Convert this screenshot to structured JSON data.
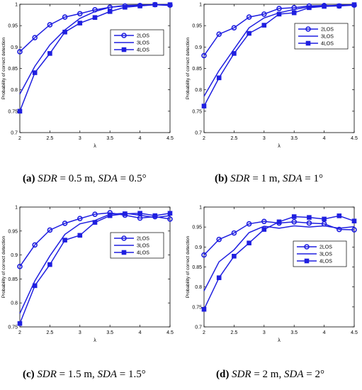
{
  "panels": [
    {
      "caption": {
        "label": "(a)",
        "var1": "SDR",
        "val1": " = 0.5 m, ",
        "var2": "SDA",
        "val2": " = 0.5°"
      },
      "chart_data": {
        "type": "line",
        "xlabel": "λ",
        "ylabel": "Probability of correct detection",
        "xlim": [
          2,
          4.5
        ],
        "ylim": [
          0.7,
          1
        ],
        "xticks": [
          "2",
          "2.5",
          "3",
          "3.5",
          "4",
          "4.5"
        ],
        "yticks": [
          "0.7",
          "0.75",
          "0.8",
          "0.85",
          "0.9",
          "0.95",
          "1"
        ],
        "legend": "top-right",
        "x": [
          2,
          2.25,
          2.5,
          2.75,
          3,
          3.25,
          3.5,
          3.75,
          4,
          4.25,
          4.5
        ],
        "series": [
          {
            "name": "2LOS",
            "marker": "circle",
            "values": [
              0.889,
              0.922,
              0.952,
              0.97,
              0.978,
              0.987,
              0.993,
              0.996,
              0.997,
              0.999,
              0.998
            ]
          },
          {
            "name": "3LOS",
            "marker": "none",
            "values": [
              0.79,
              0.855,
              0.905,
              0.94,
              0.967,
              0.983,
              0.993,
              0.997,
              0.998,
              0.999,
              0.997
            ]
          },
          {
            "name": "4LOS",
            "marker": "square",
            "values": [
              0.75,
              0.84,
              0.885,
              0.935,
              0.956,
              0.969,
              0.983,
              0.993,
              0.996,
              0.999,
              0.999
            ]
          }
        ]
      }
    },
    {
      "caption": {
        "label": "(b)",
        "var1": "SDR",
        "val1": " = 1 m, ",
        "var2": "SDA",
        "val2": " = 1°"
      },
      "chart_data": {
        "type": "line",
        "xlabel": "λ",
        "ylabel": "Probability of correct detection",
        "xlim": [
          2,
          4.5
        ],
        "ylim": [
          0.7,
          1
        ],
        "xticks": [
          "2",
          "2.5",
          "3",
          "3.5",
          "4",
          "4.5"
        ],
        "yticks": [
          "0.7",
          "0.75",
          "0.8",
          "0.85",
          "0.9",
          "0.95",
          "1"
        ],
        "legend": "top-right",
        "x": [
          2,
          2.25,
          2.5,
          2.75,
          3,
          3.25,
          3.5,
          3.75,
          4,
          4.25,
          4.5
        ],
        "series": [
          {
            "name": "2LOS",
            "marker": "circle",
            "values": [
              0.88,
              0.93,
              0.945,
              0.97,
              0.977,
              0.99,
              0.992,
              0.996,
              0.997,
              0.996,
              0.998
            ]
          },
          {
            "name": "3LOS",
            "marker": "none",
            "values": [
              0.785,
              0.845,
              0.895,
              0.945,
              0.968,
              0.98,
              0.988,
              0.994,
              0.996,
              0.998,
              0.999
            ]
          },
          {
            "name": "4LOS",
            "marker": "square",
            "values": [
              0.762,
              0.828,
              0.885,
              0.932,
              0.951,
              0.977,
              0.98,
              0.992,
              0.995,
              0.996,
              0.999
            ]
          }
        ]
      }
    },
    {
      "caption": {
        "label": "(c)",
        "var1": "SDR",
        "val1": " = 1.5 m, ",
        "var2": "SDA",
        "val2": " = 1.5°"
      },
      "chart_data": {
        "type": "line",
        "xlabel": "λ",
        "ylabel": "Probability of correct detection",
        "xlim": [
          2,
          4.5
        ],
        "ylim": [
          0.75,
          1
        ],
        "xticks": [
          "2",
          "2.5",
          "3",
          "3.5",
          "4",
          "4.5"
        ],
        "yticks": [
          "0.75",
          "0.8",
          "0.85",
          "0.9",
          "0.95",
          "1"
        ],
        "legend": "right",
        "x": [
          2,
          2.25,
          2.5,
          2.75,
          3,
          3.25,
          3.5,
          3.75,
          4,
          4.25,
          4.5
        ],
        "series": [
          {
            "name": "2LOS",
            "marker": "circle",
            "values": [
              0.876,
              0.921,
              0.952,
              0.966,
              0.976,
              0.985,
              0.988,
              0.983,
              0.977,
              0.98,
              0.975
            ]
          },
          {
            "name": "3LOS",
            "marker": "none",
            "values": [
              0.778,
              0.846,
              0.898,
              0.943,
              0.965,
              0.972,
              0.985,
              0.987,
              0.983,
              0.978,
              0.982
            ]
          },
          {
            "name": "4LOS",
            "marker": "square",
            "values": [
              0.757,
              0.836,
              0.88,
              0.931,
              0.941,
              0.968,
              0.982,
              0.986,
              0.987,
              0.982,
              0.987
            ]
          }
        ]
      }
    },
    {
      "caption": {
        "label": "(d)",
        "var1": "SDR",
        "val1": " = 2 m, ",
        "var2": "SDA",
        "val2": " = 2°"
      },
      "chart_data": {
        "type": "line",
        "xlabel": "λ",
        "ylabel": "Probability of correct detection",
        "xlim": [
          2,
          4.5
        ],
        "ylim": [
          0.7,
          1
        ],
        "xticks": [
          "2",
          "2.5",
          "3",
          "3.5",
          "4",
          "4.5"
        ],
        "yticks": [
          "0.7",
          "0.75",
          "0.8",
          "0.85",
          "0.9",
          "0.95",
          "1"
        ],
        "legend": "right",
        "x": [
          2,
          2.25,
          2.5,
          2.75,
          3,
          3.25,
          3.5,
          3.75,
          4,
          4.25,
          4.5
        ],
        "series": [
          {
            "name": "2LOS",
            "marker": "circle",
            "values": [
              0.88,
              0.919,
              0.935,
              0.958,
              0.964,
              0.96,
              0.963,
              0.96,
              0.958,
              0.944,
              0.943
            ]
          },
          {
            "name": "3LOS",
            "marker": "none",
            "values": [
              0.79,
              0.863,
              0.893,
              0.936,
              0.952,
              0.947,
              0.953,
              0.95,
              0.953,
              0.947,
              0.951
            ]
          },
          {
            "name": "4LOS",
            "marker": "square",
            "values": [
              0.744,
              0.823,
              0.877,
              0.91,
              0.944,
              0.963,
              0.976,
              0.974,
              0.97,
              0.978,
              0.965
            ]
          }
        ]
      }
    }
  ],
  "style": {
    "line_color": "#1f1fe0",
    "axis_color": "#000000"
  }
}
